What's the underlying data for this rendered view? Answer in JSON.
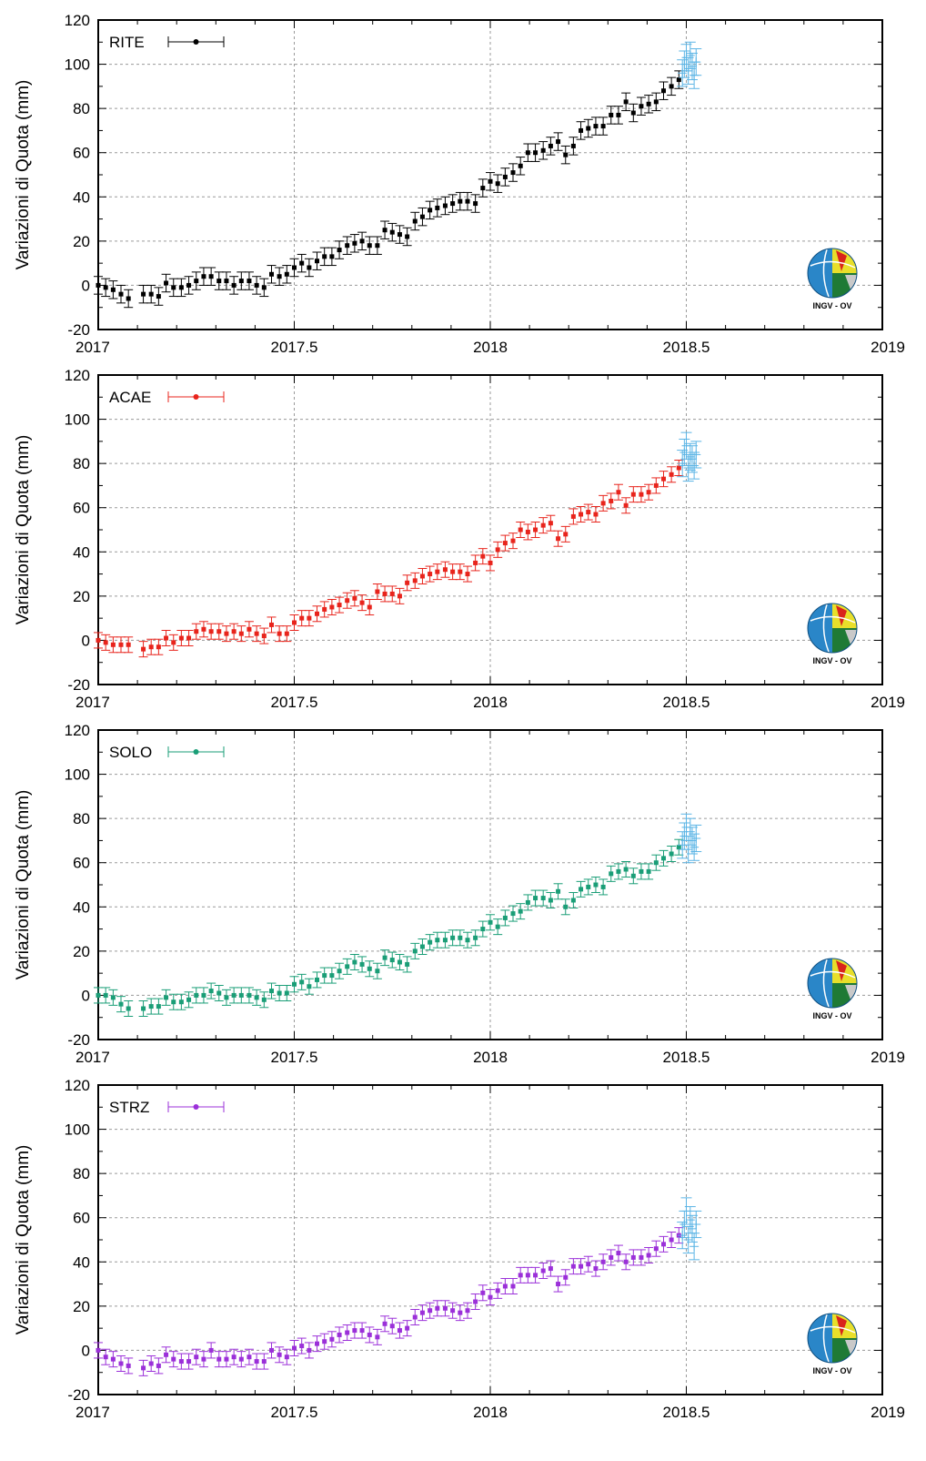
{
  "logo": {
    "text": "INGV - OV"
  },
  "colors": {
    "forecast": "#5ab4e5"
  },
  "chart_data": [
    {
      "type": "scatter",
      "station": "RITE",
      "color": "#000000",
      "ylabel": "Variazioni di Quota (mm)",
      "xlim": [
        2017,
        2019
      ],
      "ylim": [
        -20,
        120
      ],
      "xticks": [
        "2017",
        "2017.5",
        "2018",
        "2018.5",
        "2019"
      ],
      "yticks": [
        "-20",
        "0",
        "20",
        "40",
        "60",
        "80",
        "100",
        "120"
      ],
      "grid": true,
      "legend_position": "top-left",
      "error_bar": 4,
      "x": [
        2017.0,
        2017.019,
        2017.038,
        2017.058,
        2017.077,
        2017.115,
        2017.135,
        2017.154,
        2017.173,
        2017.192,
        2017.212,
        2017.231,
        2017.25,
        2017.269,
        2017.288,
        2017.308,
        2017.327,
        2017.346,
        2017.365,
        2017.385,
        2017.404,
        2017.423,
        2017.442,
        2017.462,
        2017.481,
        2017.5,
        2017.519,
        2017.538,
        2017.558,
        2017.577,
        2017.596,
        2017.615,
        2017.635,
        2017.654,
        2017.673,
        2017.692,
        2017.712,
        2017.731,
        2017.75,
        2017.769,
        2017.788,
        2017.808,
        2017.827,
        2017.846,
        2017.865,
        2017.885,
        2017.904,
        2017.923,
        2017.942,
        2017.962,
        2017.981,
        2018.0,
        2018.019,
        2018.038,
        2018.058,
        2018.077,
        2018.096,
        2018.115,
        2018.135,
        2018.154,
        2018.173,
        2018.192,
        2018.212,
        2018.231,
        2018.25,
        2018.269,
        2018.288,
        2018.308,
        2018.327,
        2018.346,
        2018.365,
        2018.385,
        2018.404,
        2018.423,
        2018.442,
        2018.462,
        2018.481
      ],
      "y": [
        0,
        -1,
        -2,
        -4,
        -6,
        -4,
        -4,
        -5,
        1,
        -1,
        -1,
        0,
        2,
        4,
        4,
        2,
        2,
        0,
        2,
        2,
        0,
        -1,
        5,
        4,
        5,
        8,
        10,
        8,
        11,
        13,
        13,
        16,
        18,
        19,
        20,
        18,
        18,
        25,
        24,
        23,
        22,
        29,
        31,
        34,
        35,
        36,
        37,
        38,
        38,
        37,
        44,
        47,
        46,
        49,
        51,
        54,
        60,
        60,
        61,
        63,
        65,
        59,
        63,
        70,
        71,
        72,
        72,
        77,
        77,
        83,
        78,
        81,
        82,
        83,
        88,
        90,
        93
      ],
      "forecast": {
        "x": [
          2018.49,
          2018.495,
          2018.5,
          2018.505,
          2018.51,
          2018.515,
          2018.52,
          2018.525
        ],
        "y": [
          96,
          100,
          103,
          97,
          104,
          99,
          95,
          101
        ]
      }
    },
    {
      "type": "scatter",
      "station": "ACAE",
      "color": "#e8241c",
      "ylabel": "Variazioni di Quota (mm)",
      "xlim": [
        2017,
        2019
      ],
      "ylim": [
        -20,
        120
      ],
      "xticks": [
        "2017",
        "2017.5",
        "2018",
        "2018.5",
        "2019"
      ],
      "yticks": [
        "-20",
        "0",
        "20",
        "40",
        "60",
        "80",
        "100",
        "120"
      ],
      "grid": true,
      "legend_position": "top-left",
      "error_bar": 3.5,
      "x": [
        2017.0,
        2017.019,
        2017.038,
        2017.058,
        2017.077,
        2017.115,
        2017.135,
        2017.154,
        2017.173,
        2017.192,
        2017.212,
        2017.231,
        2017.25,
        2017.269,
        2017.288,
        2017.308,
        2017.327,
        2017.346,
        2017.365,
        2017.385,
        2017.404,
        2017.423,
        2017.442,
        2017.462,
        2017.481,
        2017.5,
        2017.519,
        2017.538,
        2017.558,
        2017.577,
        2017.596,
        2017.615,
        2017.635,
        2017.654,
        2017.673,
        2017.692,
        2017.712,
        2017.731,
        2017.75,
        2017.769,
        2017.788,
        2017.808,
        2017.827,
        2017.846,
        2017.865,
        2017.885,
        2017.904,
        2017.923,
        2017.942,
        2017.962,
        2017.981,
        2018.0,
        2018.019,
        2018.038,
        2018.058,
        2018.077,
        2018.096,
        2018.115,
        2018.135,
        2018.154,
        2018.173,
        2018.192,
        2018.212,
        2018.231,
        2018.25,
        2018.269,
        2018.288,
        2018.308,
        2018.327,
        2018.346,
        2018.365,
        2018.385,
        2018.404,
        2018.423,
        2018.442,
        2018.462,
        2018.481
      ],
      "y": [
        0,
        -1,
        -2,
        -2,
        -2,
        -4,
        -3,
        -3,
        1,
        -1,
        1,
        1,
        4,
        5,
        4,
        4,
        3,
        4,
        3,
        5,
        3,
        2,
        7,
        3,
        3,
        8,
        10,
        10,
        12,
        14,
        15,
        16,
        18,
        19,
        17,
        15,
        22,
        21,
        21,
        20,
        26,
        27,
        29,
        30,
        31,
        32,
        31,
        31,
        30,
        35,
        38,
        35,
        41,
        44,
        45,
        50,
        49,
        50,
        52,
        53,
        46,
        48,
        56,
        57,
        58,
        57,
        62,
        63,
        67,
        61,
        66,
        66,
        67,
        70,
        73,
        75,
        78
      ],
      "forecast": {
        "x": [
          2018.49,
          2018.495,
          2018.5,
          2018.505,
          2018.51,
          2018.515,
          2018.52,
          2018.525
        ],
        "y": [
          80,
          85,
          88,
          78,
          83,
          82,
          79,
          84
        ]
      }
    },
    {
      "type": "scatter",
      "station": "SOLO",
      "color": "#1a9e77",
      "ylabel": "Variazioni di Quota (mm)",
      "xlim": [
        2017,
        2019
      ],
      "ylim": [
        -20,
        120
      ],
      "xticks": [
        "2017",
        "2017.5",
        "2018",
        "2018.5",
        "2019"
      ],
      "yticks": [
        "-20",
        "0",
        "20",
        "40",
        "60",
        "80",
        "100",
        "120"
      ],
      "grid": true,
      "legend_position": "top-left",
      "error_bar": 3.5,
      "x": [
        2017.0,
        2017.019,
        2017.038,
        2017.058,
        2017.077,
        2017.115,
        2017.135,
        2017.154,
        2017.173,
        2017.192,
        2017.212,
        2017.231,
        2017.25,
        2017.269,
        2017.288,
        2017.308,
        2017.327,
        2017.346,
        2017.365,
        2017.385,
        2017.404,
        2017.423,
        2017.442,
        2017.462,
        2017.481,
        2017.5,
        2017.519,
        2017.538,
        2017.558,
        2017.577,
        2017.596,
        2017.615,
        2017.635,
        2017.654,
        2017.673,
        2017.692,
        2017.712,
        2017.731,
        2017.75,
        2017.769,
        2017.788,
        2017.808,
        2017.827,
        2017.846,
        2017.865,
        2017.885,
        2017.904,
        2017.923,
        2017.942,
        2017.962,
        2017.981,
        2018.0,
        2018.019,
        2018.038,
        2018.058,
        2018.077,
        2018.096,
        2018.115,
        2018.135,
        2018.154,
        2018.173,
        2018.192,
        2018.212,
        2018.231,
        2018.25,
        2018.269,
        2018.288,
        2018.308,
        2018.327,
        2018.346,
        2018.365,
        2018.385,
        2018.404,
        2018.423,
        2018.442,
        2018.462,
        2018.481
      ],
      "y": [
        0,
        0,
        -1,
        -4,
        -6,
        -6,
        -5,
        -5,
        -1,
        -3,
        -3,
        -2,
        0,
        0,
        2,
        1,
        -1,
        0,
        0,
        0,
        -1,
        -2,
        2,
        1,
        1,
        5,
        6,
        4,
        7,
        9,
        9,
        11,
        13,
        15,
        14,
        12,
        11,
        17,
        16,
        15,
        14,
        20,
        22,
        24,
        25,
        25,
        26,
        26,
        25,
        26,
        30,
        33,
        31,
        35,
        37,
        38,
        42,
        44,
        44,
        43,
        47,
        40,
        43,
        48,
        49,
        50,
        49,
        55,
        56,
        57,
        54,
        56,
        56,
        60,
        62,
        64,
        67
      ],
      "forecast": {
        "x": [
          2018.49,
          2018.495,
          2018.5,
          2018.505,
          2018.51,
          2018.515,
          2018.52,
          2018.525
        ],
        "y": [
          68,
          72,
          76,
          66,
          74,
          70,
          67,
          71
        ]
      }
    },
    {
      "type": "scatter",
      "station": "STRZ",
      "color": "#9b30d9",
      "ylabel": "Variazioni di Quota (mm)",
      "xlim": [
        2017,
        2019
      ],
      "ylim": [
        -20,
        120
      ],
      "xticks": [
        "2017",
        "2017.5",
        "2018",
        "2018.5",
        "2019"
      ],
      "yticks": [
        "-20",
        "0",
        "20",
        "40",
        "60",
        "80",
        "100",
        "120"
      ],
      "grid": true,
      "legend_position": "top-left",
      "error_bar": 3.5,
      "x": [
        2017.0,
        2017.019,
        2017.038,
        2017.058,
        2017.077,
        2017.115,
        2017.135,
        2017.154,
        2017.173,
        2017.192,
        2017.212,
        2017.231,
        2017.25,
        2017.269,
        2017.288,
        2017.308,
        2017.327,
        2017.346,
        2017.365,
        2017.385,
        2017.404,
        2017.423,
        2017.442,
        2017.462,
        2017.481,
        2017.5,
        2017.519,
        2017.538,
        2017.558,
        2017.577,
        2017.596,
        2017.615,
        2017.635,
        2017.654,
        2017.673,
        2017.692,
        2017.712,
        2017.731,
        2017.75,
        2017.769,
        2017.788,
        2017.808,
        2017.827,
        2017.846,
        2017.865,
        2017.885,
        2017.904,
        2017.923,
        2017.942,
        2017.962,
        2017.981,
        2018.0,
        2018.019,
        2018.038,
        2018.058,
        2018.077,
        2018.096,
        2018.115,
        2018.135,
        2018.154,
        2018.173,
        2018.192,
        2018.212,
        2018.231,
        2018.25,
        2018.269,
        2018.288,
        2018.308,
        2018.327,
        2018.346,
        2018.365,
        2018.385,
        2018.404,
        2018.423,
        2018.442,
        2018.462,
        2018.481
      ],
      "y": [
        0,
        -3,
        -4,
        -6,
        -7,
        -8,
        -6,
        -7,
        -2,
        -4,
        -5,
        -5,
        -3,
        -4,
        0,
        -4,
        -4,
        -3,
        -4,
        -3,
        -5,
        -5,
        0,
        -2,
        -3,
        1,
        2,
        0,
        3,
        4,
        5,
        7,
        8,
        9,
        9,
        7,
        6,
        12,
        11,
        9,
        10,
        15,
        17,
        18,
        19,
        19,
        18,
        17,
        18,
        22,
        26,
        24,
        27,
        29,
        29,
        34,
        34,
        34,
        36,
        37,
        30,
        33,
        38,
        38,
        39,
        37,
        40,
        42,
        44,
        40,
        42,
        42,
        43,
        46,
        48,
        50,
        52
      ],
      "forecast": {
        "x": [
          2018.49,
          2018.495,
          2018.5,
          2018.505,
          2018.51,
          2018.515,
          2018.52,
          2018.525
        ],
        "y": [
          52,
          57,
          63,
          50,
          59,
          55,
          47,
          57
        ]
      }
    }
  ]
}
